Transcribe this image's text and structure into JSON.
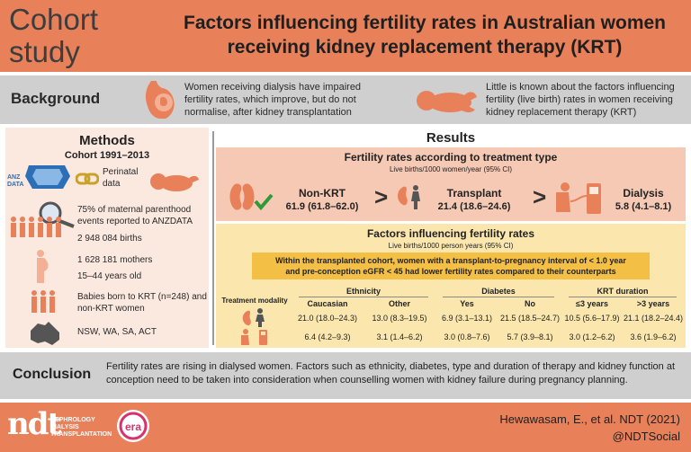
{
  "header": {
    "label_line1": "Cohort",
    "label_line2": "study",
    "title_line1": "Factors influencing fertility rates in Australian women",
    "title_line2": "receiving kidney replacement therapy (KRT)"
  },
  "background": {
    "label": "Background",
    "text1": "Women receiving dialysis have impaired fertility rates, which improve, but do not normalise, after kidney transplantation",
    "text2": "Little is known about the factors influencing fertility (live birth) rates in women receiving kidney replacement therapy (KRT)"
  },
  "methods": {
    "title": "Methods",
    "cohort": "Cohort 1991–2013",
    "anz_label": "ANZ DATA",
    "perinatal": "Perinatal data",
    "maternal": "75% of maternal parenthood events reported to ANZDATA",
    "births": "2 948 084 births",
    "mothers": "1 628 181 mothers",
    "ages": "15–44 years old",
    "babies": "Babies born to KRT (n=248) and non-KRT women",
    "states": "NSW, WA, SA, ACT"
  },
  "results": {
    "title": "Results",
    "section1": {
      "title": "Fertility rates according to treatment type",
      "subtitle": "Live births/1000 women/year (95% CI)",
      "non_krt_label": "Non-KRT",
      "non_krt_value": "61.9 (61.8–62.0)",
      "transplant_label": "Transplant",
      "transplant_value": "21.4 (18.6–24.6)",
      "dialysis_label": "Dialysis",
      "dialysis_value": "5.8 (4.1–8.1)",
      "gt": ">"
    },
    "section2": {
      "title": "Factors influencing fertility rates",
      "subtitle": "Live births/1000 person years (95% CI)",
      "highlight_line1": "Within the transplanted cohort, women with a transplant-to-pregnancy interval of < 1.0 year",
      "highlight_line2": "and pre-conception eGFR < 45 had lower fertility rates compared to their counterparts",
      "row_label": "Treatment modality",
      "groups": [
        "Ethnicity",
        "Diabetes",
        "KRT duration"
      ],
      "columns": [
        "Caucasian",
        "Other",
        "Yes",
        "No",
        "≤3 years",
        ">3 years"
      ],
      "transplant_row": [
        "21.0 (18.0–24.3)",
        "13.0 (8.3–19.5)",
        "6.9 (3.1–13.1)",
        "21.5 (18.5–24.7)",
        "10.5 (5.6–17.9)",
        "21.1 (18.2–24.4)"
      ],
      "dialysis_row": [
        "6.4 (4.2–9.3)",
        "3.1 (1.4–6.2)",
        "3.0 (0.8–7.6)",
        "5.7 (3.9–8.1)",
        "3.0 (1.2–6.2)",
        "3.6 (1.9–6.2)"
      ]
    }
  },
  "conclusion": {
    "label": "Conclusion",
    "text": "Fertility rates are rising in dialysed women. Factors such as ethnicity, diabetes, type and duration of therapy and kidney function at conception need to be taken into consideration when counselling women with kidney failure during pregnancy planning."
  },
  "footer": {
    "ndt_logo": "ndt",
    "ndt_line1": "NEPHROLOGY",
    "ndt_line2": "DIALYSIS",
    "ndt_line3": "TRANSPLANTATION",
    "era_logo": "era",
    "citation": "Hewawasam, E., et al. NDT (2021)",
    "handle": "@NDTSocial"
  },
  "colors": {
    "header_bg": "#e8805a",
    "band_bg": "#cfcfcf",
    "methods_bg": "#fbe8df",
    "results1_bg": "#f6c9b4",
    "results2_bg": "#fbe7ae",
    "highlight": "#f3bf45",
    "accent_green": "#2e9a3a"
  },
  "icons": [
    "pregnant-belly-icon",
    "baby-icon",
    "world-map-icon",
    "chain-link-icon",
    "magnifier-icon",
    "women-group-icon",
    "pregnant-woman-icon",
    "mother-baby-icon",
    "australia-map-icon",
    "kidney-icon",
    "checkmark-icon",
    "woman-icon",
    "dialysis-machine-icon"
  ]
}
